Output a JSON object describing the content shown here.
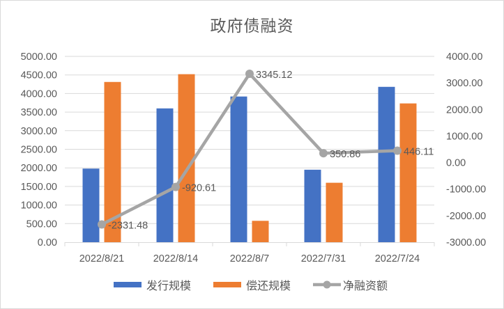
{
  "title": "政府债融资",
  "colors": {
    "issue": "#4472C4",
    "repay": "#ED7D31",
    "net": "#A5A5A5",
    "grid": "#D9D9D9",
    "text": "#595959"
  },
  "legend": [
    {
      "label": "发行规模",
      "type": "bar",
      "color": "#4472C4"
    },
    {
      "label": "偿还规模",
      "type": "bar",
      "color": "#ED7D31"
    },
    {
      "label": "净融资额",
      "type": "line",
      "color": "#A5A5A5"
    }
  ],
  "chart_data": {
    "type": "bar",
    "title": "政府债融资",
    "categories": [
      "2022/8/21",
      "2022/8/14",
      "2022/8/7",
      "2022/7/31",
      "2022/7/24"
    ],
    "series": [
      {
        "name": "发行规模",
        "type": "bar",
        "axis": "left",
        "values": [
          1980,
          3600,
          3920,
          1950,
          4180
        ]
      },
      {
        "name": "偿还规模",
        "type": "bar",
        "axis": "left",
        "values": [
          4311.48,
          4520.61,
          574.88,
          1599.14,
          3733.89
        ]
      },
      {
        "name": "净融资额",
        "type": "line",
        "axis": "right",
        "values": [
          -2331.48,
          -920.61,
          3345.12,
          350.86,
          446.11
        ],
        "data_labels": [
          "-2331.48",
          "-920.61",
          "3345.12",
          "350.86",
          "446.11"
        ]
      }
    ],
    "left_axis": {
      "min": 0,
      "max": 5000,
      "step": 500,
      "ticks": [
        "5000.00",
        "4500.00",
        "4000.00",
        "3500.00",
        "3000.00",
        "2500.00",
        "2000.00",
        "1500.00",
        "1000.00",
        "500.00",
        "0.00"
      ]
    },
    "right_axis": {
      "min": -3000,
      "max": 4000,
      "step": 1000,
      "ticks": [
        "4000.00",
        "3000.00",
        "2000.00",
        "1000.00",
        "0.00",
        "-1000.00",
        "-2000.00",
        "-3000.00"
      ]
    },
    "xlabel": "",
    "ylabel": "",
    "grid": true,
    "legend_position": "bottom"
  }
}
